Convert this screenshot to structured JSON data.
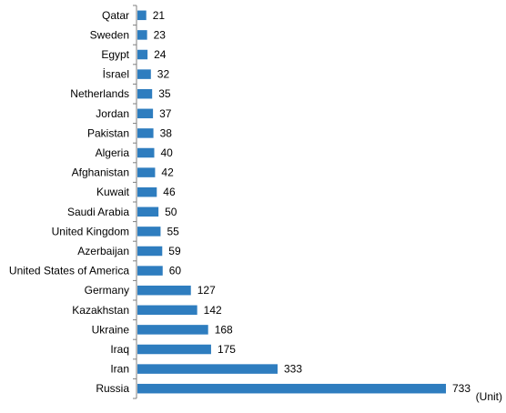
{
  "chart_data": {
    "type": "bar",
    "orientation": "horizontal",
    "categories": [
      "Qatar",
      "Sweden",
      "Egypt",
      "İsrael",
      "Netherlands",
      "Jordan",
      "Pakistan",
      "Algeria",
      "Afghanistan",
      "Kuwait",
      "Saudi Arabia",
      "United Kingdom",
      "Azerbaijan",
      "United States of America",
      "Germany",
      "Kazakhstan",
      "Ukraine",
      "Iraq",
      "Iran",
      "Russia"
    ],
    "values": [
      21,
      23,
      24,
      32,
      35,
      37,
      38,
      40,
      42,
      46,
      50,
      55,
      59,
      60,
      127,
      142,
      168,
      175,
      333,
      733
    ],
    "data_labels": [
      "21",
      "23",
      "24",
      "32",
      "35",
      "37",
      "38",
      "40",
      "42",
      "46",
      "50",
      "55",
      "59",
      "60",
      "127",
      "142",
      "168",
      "175",
      "333",
      "733"
    ],
    "title": "",
    "xlabel": "(Unit)",
    "ylabel": "",
    "xlim": [
      0,
      800
    ],
    "grid": false,
    "legend": "none",
    "bar_color": "#2e7dbf",
    "axis_color": "#7f7f7f"
  }
}
